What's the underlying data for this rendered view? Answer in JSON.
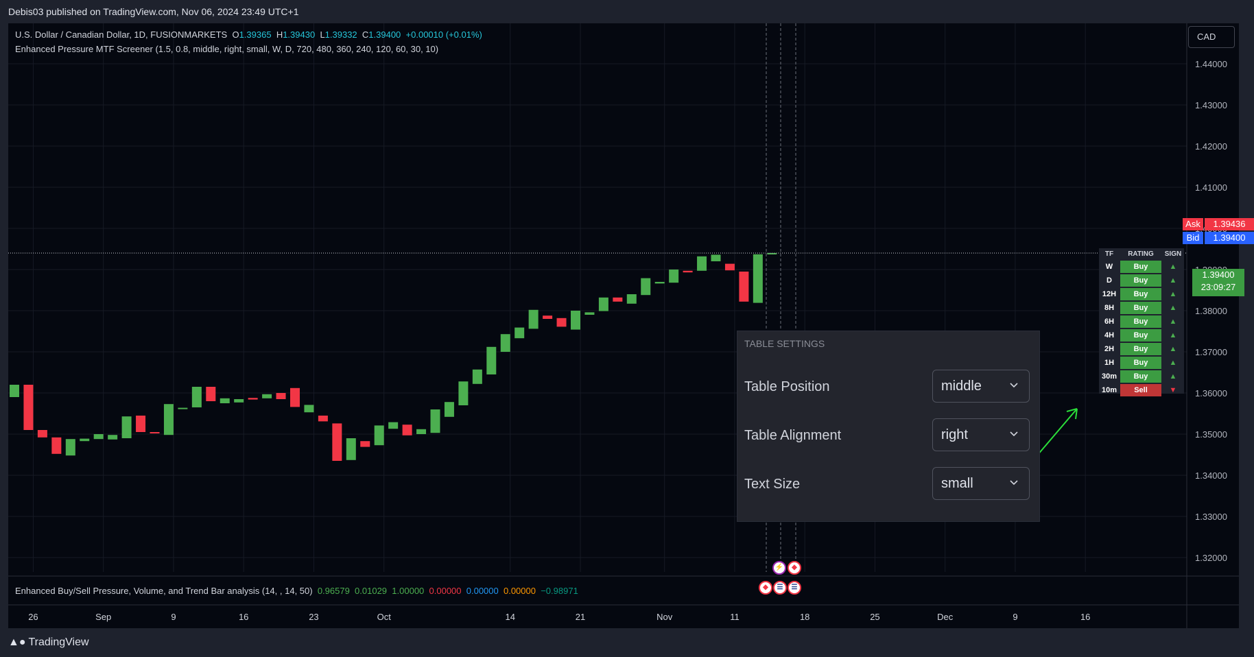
{
  "header": {
    "published": "Debis03 published on TradingView.com, Nov 06, 2024 23:49 UTC+1"
  },
  "legend": {
    "symbol": "U.S. Dollar / Canadian Dollar, 1D, FUSIONMARKETS",
    "o_label": "O",
    "o": "1.39365",
    "h_label": "H",
    "h": "1.39430",
    "l_label": "L",
    "l": "1.39332",
    "c_label": "C",
    "c": "1.39400",
    "chg": "+0.00010 (+0.01%)",
    "indicator1": "Enhanced Pressure MTF Screener (1.5, 0.8, middle, right, small, W, D, 720, 480, 360, 240, 120, 60, 30, 10)",
    "indicator2": "Enhanced Buy/Sell Pressure, Volume, and Trend Bar analysis (14, , 14, 50)",
    "ind2_values": [
      "0.96579",
      "0.01029",
      "1.00000",
      "0.00000",
      "0.00000",
      "0.00000",
      "−0.98971"
    ]
  },
  "currency": "CAD",
  "ask": {
    "label": "Ask",
    "value": "1.39436"
  },
  "bid": {
    "label": "Bid",
    "value": "1.39400"
  },
  "current": {
    "price": "1.39400",
    "countdown": "23:09:27"
  },
  "settings": {
    "title": "TABLE SETTINGS",
    "rows": [
      {
        "label": "Table Position",
        "value": "middle"
      },
      {
        "label": "Table Alignment",
        "value": "right"
      },
      {
        "label": "Text Size",
        "value": "small"
      }
    ]
  },
  "screener": {
    "headers": [
      "TF",
      "RATING",
      "SIGN"
    ],
    "rows": [
      {
        "tf": "W",
        "rating": "Buy",
        "signal": "▲"
      },
      {
        "tf": "D",
        "rating": "Buy",
        "signal": "▲"
      },
      {
        "tf": "12H",
        "rating": "Buy",
        "signal": "▲"
      },
      {
        "tf": "8H",
        "rating": "Buy",
        "signal": "▲"
      },
      {
        "tf": "6H",
        "rating": "Buy",
        "signal": "▲"
      },
      {
        "tf": "4H",
        "rating": "Buy",
        "signal": "▲"
      },
      {
        "tf": "2H",
        "rating": "Buy",
        "signal": "▲"
      },
      {
        "tf": "1H",
        "rating": "Buy",
        "signal": "▲"
      },
      {
        "tf": "30m",
        "rating": "Buy",
        "signal": "▲"
      },
      {
        "tf": "10m",
        "rating": "Sell",
        "signal": "▼"
      }
    ]
  },
  "colors": {
    "up": "#4caf50",
    "down": "#f23645",
    "bg": "#050810",
    "grid": "#161a25"
  },
  "footer": {
    "brand": "TradingView"
  },
  "chart_data": {
    "type": "candlestick",
    "title": "U.S. Dollar / Canadian Dollar, 1D",
    "ylim": [
      1.317,
      1.449
    ],
    "y_ticks": [
      "1.44000",
      "1.43000",
      "1.42000",
      "1.41000",
      "1.40000",
      "1.39000",
      "1.38000",
      "1.37000",
      "1.36000",
      "1.35000",
      "1.34000",
      "1.33000",
      "1.32000"
    ],
    "x_ticks": [
      "26",
      "Sep",
      "9",
      "16",
      "23",
      "Oct",
      "14",
      "21",
      "Nov",
      "11",
      "18",
      "25",
      "Dec",
      "9",
      "16"
    ],
    "candles": [
      {
        "o": 1.359,
        "c": 1.362
      },
      {
        "o": 1.362,
        "c": 1.351
      },
      {
        "o": 1.351,
        "c": 1.3492
      },
      {
        "o": 1.3492,
        "c": 1.3452
      },
      {
        "o": 1.3448,
        "c": 1.3488
      },
      {
        "o": 1.3483,
        "c": 1.3489
      },
      {
        "o": 1.3488,
        "c": 1.35
      },
      {
        "o": 1.3487,
        "c": 1.3498
      },
      {
        "o": 1.349,
        "c": 1.3543
      },
      {
        "o": 1.3545,
        "c": 1.3505
      },
      {
        "o": 1.3505,
        "c": 1.3504
      },
      {
        "o": 1.3498,
        "c": 1.3573
      },
      {
        "o": 1.3562,
        "c": 1.3564
      },
      {
        "o": 1.3565,
        "c": 1.3615
      },
      {
        "o": 1.3615,
        "c": 1.358
      },
      {
        "o": 1.3575,
        "c": 1.3587
      },
      {
        "o": 1.3577,
        "c": 1.3585
      },
      {
        "o": 1.3588,
        "c": 1.3584
      },
      {
        "o": 1.3587,
        "c": 1.3597
      },
      {
        "o": 1.36,
        "c": 1.3585
      },
      {
        "o": 1.3612,
        "c": 1.3566
      },
      {
        "o": 1.3553,
        "c": 1.3571
      },
      {
        "o": 1.3545,
        "c": 1.3531
      },
      {
        "o": 1.3526,
        "c": 1.3435
      },
      {
        "o": 1.3437,
        "c": 1.349
      },
      {
        "o": 1.3483,
        "c": 1.3469
      },
      {
        "o": 1.3473,
        "c": 1.3521
      },
      {
        "o": 1.3513,
        "c": 1.3529
      },
      {
        "o": 1.3523,
        "c": 1.3497
      },
      {
        "o": 1.35,
        "c": 1.3512
      },
      {
        "o": 1.3503,
        "c": 1.356
      },
      {
        "o": 1.3542,
        "c": 1.3578
      },
      {
        "o": 1.357,
        "c": 1.3628
      },
      {
        "o": 1.3622,
        "c": 1.3657
      },
      {
        "o": 1.3645,
        "c": 1.3712
      },
      {
        "o": 1.37,
        "c": 1.3743
      },
      {
        "o": 1.3733,
        "c": 1.3759
      },
      {
        "o": 1.3756,
        "c": 1.3802
      },
      {
        "o": 1.3788,
        "c": 1.378
      },
      {
        "o": 1.3782,
        "c": 1.3761
      },
      {
        "o": 1.3754,
        "c": 1.38
      },
      {
        "o": 1.379,
        "c": 1.3796
      },
      {
        "o": 1.3799,
        "c": 1.3832
      },
      {
        "o": 1.3832,
        "c": 1.3822
      },
      {
        "o": 1.3817,
        "c": 1.384
      },
      {
        "o": 1.3838,
        "c": 1.3879
      },
      {
        "o": 1.3866,
        "c": 1.387
      },
      {
        "o": 1.3868,
        "c": 1.39
      },
      {
        "o": 1.3897,
        "c": 1.3893
      },
      {
        "o": 1.3897,
        "c": 1.3932
      },
      {
        "o": 1.392,
        "c": 1.3936
      },
      {
        "o": 1.3914,
        "c": 1.3898
      },
      {
        "o": 1.3895,
        "c": 1.3822
      },
      {
        "o": 1.3819,
        "c": 1.3937
      },
      {
        "o": 1.3937,
        "c": 1.394
      }
    ]
  }
}
